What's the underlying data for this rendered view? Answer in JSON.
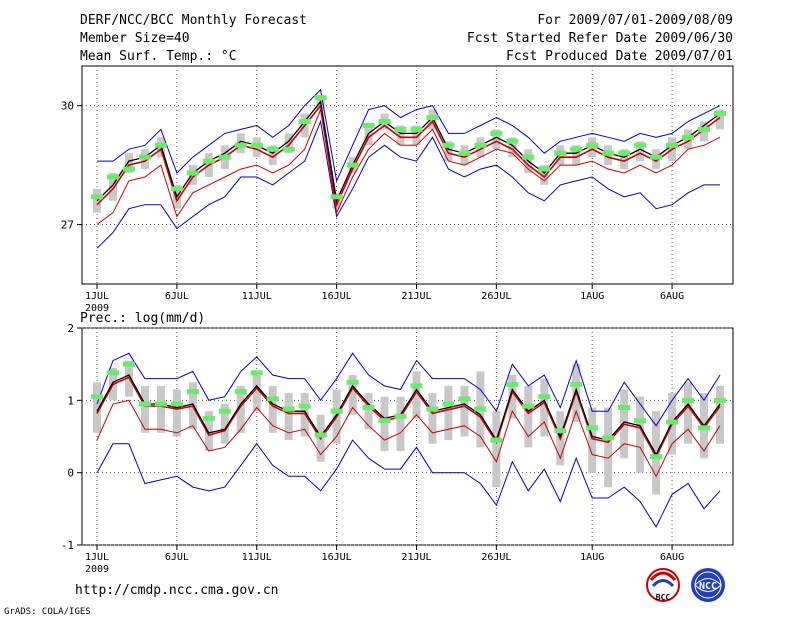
{
  "header": {
    "left_line1": "DERF/NCC/BCC Monthly Forecast",
    "left_line2": "Member Size=40",
    "left_line3": "Mean Surf. Temp.: °C",
    "right_line1": "For 2009/07/01-2009/08/09",
    "right_line2": "Fcst Started Refer Date 2009/06/30",
    "right_line3": "Fcst Produced Date 2009/07/01"
  },
  "footer": {
    "url": "http://cmdp.ncc.cma.gov.cn",
    "credit": "GrADS: COLA/IGES",
    "logo1_text": "BCC",
    "logo2_text": "NCC"
  },
  "colors": {
    "mean_line": "#000000",
    "median_line": "#cc0000",
    "bound_line": "#0000cc",
    "lower_line": "#cc0000",
    "box": "#c8c8c8",
    "marker": "#66ee66"
  },
  "chart_data": [
    {
      "type": "line",
      "title": "Mean Surf. Temp.: °C",
      "xlabel": "",
      "ylabel": "Mean Surf. Temp. (°C)",
      "year_label": "2009",
      "ylim": [
        25.5,
        31
      ],
      "yticks": [
        27,
        30
      ],
      "ytick_labels": [
        "27",
        "30"
      ],
      "x_tick_positions": [
        1,
        6,
        11,
        16,
        21,
        26,
        32,
        37
      ],
      "x_tick_labels": [
        "1JUL",
        "6JUL",
        "11JUL",
        "16JUL",
        "21JUL",
        "26JUL",
        "1AUG",
        "6AUG"
      ],
      "x": [
        1,
        2,
        3,
        4,
        5,
        6,
        7,
        8,
        9,
        10,
        11,
        12,
        13,
        14,
        15,
        16,
        17,
        18,
        19,
        20,
        21,
        22,
        23,
        24,
        25,
        26,
        27,
        28,
        29,
        30,
        31,
        32,
        33,
        34,
        35,
        36,
        37,
        38,
        39,
        40
      ],
      "series": [
        {
          "name": "ensemble mean",
          "values": [
            27.6,
            28.0,
            28.6,
            28.7,
            29.0,
            27.7,
            28.3,
            28.6,
            28.8,
            29.1,
            29.0,
            28.8,
            29.1,
            29.6,
            30.1,
            27.6,
            28.5,
            29.3,
            29.6,
            29.3,
            29.3,
            29.7,
            28.9,
            28.8,
            29.0,
            29.2,
            29.0,
            28.6,
            28.3,
            28.8,
            28.8,
            29.0,
            28.8,
            28.7,
            28.9,
            28.7,
            29.0,
            29.2,
            29.5,
            29.8
          ]
        },
        {
          "name": "median",
          "values": [
            27.5,
            27.9,
            28.5,
            28.6,
            28.9,
            27.6,
            28.2,
            28.5,
            28.7,
            29.0,
            28.9,
            28.7,
            29.0,
            29.5,
            30.0,
            27.5,
            28.4,
            29.2,
            29.5,
            29.2,
            29.2,
            29.6,
            28.8,
            28.7,
            28.9,
            29.1,
            28.9,
            28.5,
            28.2,
            28.7,
            28.7,
            28.9,
            28.7,
            28.6,
            28.8,
            28.6,
            28.9,
            29.1,
            29.4,
            29.7
          ]
        },
        {
          "name": "upper bound",
          "values": [
            28.6,
            28.6,
            28.9,
            29.0,
            29.4,
            28.3,
            28.7,
            29.0,
            29.3,
            29.4,
            29.5,
            29.2,
            29.5,
            30.0,
            30.4,
            28.1,
            29.0,
            29.9,
            30.0,
            29.7,
            29.9,
            30.0,
            29.3,
            29.3,
            29.5,
            29.7,
            29.5,
            29.2,
            28.8,
            29.1,
            29.2,
            29.3,
            29.2,
            29.1,
            29.3,
            29.2,
            29.3,
            29.6,
            29.8,
            30.0
          ]
        },
        {
          "name": "lower bound",
          "values": [
            26.4,
            26.8,
            27.4,
            27.5,
            27.5,
            26.9,
            27.2,
            27.5,
            27.7,
            28.2,
            28.2,
            28.0,
            28.3,
            28.6,
            29.6,
            27.2,
            27.9,
            28.7,
            29.0,
            28.7,
            28.6,
            29.2,
            28.4,
            28.2,
            28.4,
            28.5,
            28.2,
            27.8,
            27.6,
            28.0,
            28.1,
            28.2,
            27.9,
            27.7,
            27.8,
            27.4,
            27.5,
            27.8,
            28.0,
            28.0
          ]
        },
        {
          "name": "lower percentile",
          "values": [
            27.0,
            27.3,
            28.1,
            28.2,
            28.5,
            27.2,
            27.8,
            28.0,
            28.2,
            28.4,
            28.5,
            28.3,
            28.5,
            28.9,
            29.9,
            27.3,
            28.2,
            28.9,
            29.3,
            29.0,
            29.0,
            29.4,
            28.6,
            28.5,
            28.7,
            28.9,
            28.8,
            28.4,
            28.1,
            28.5,
            28.5,
            28.6,
            28.4,
            28.3,
            28.5,
            28.3,
            28.5,
            28.9,
            29.0,
            29.2
          ]
        },
        {
          "name": "observed marker",
          "values": [
            27.7,
            28.2,
            28.4,
            28.7,
            29.0,
            27.9,
            28.3,
            28.6,
            28.7,
            29.0,
            29.0,
            28.9,
            28.9,
            29.6,
            30.2,
            27.7,
            28.5,
            29.5,
            29.6,
            29.4,
            29.4,
            29.7,
            29.0,
            28.8,
            29.0,
            29.3,
            29.1,
            28.7,
            28.4,
            28.8,
            28.9,
            29.0,
            28.8,
            28.8,
            29.0,
            28.7,
            29.0,
            29.2,
            29.4,
            29.8
          ]
        }
      ],
      "boxes_low": [
        27.3,
        27.6,
        28.3,
        28.4,
        28.7,
        27.4,
        28.0,
        28.2,
        28.4,
        28.8,
        28.7,
        28.5,
        28.8,
        29.2,
        29.9,
        27.4,
        28.3,
        29.0,
        29.4,
        29.0,
        29.0,
        29.4,
        28.6,
        28.5,
        28.7,
        28.9,
        28.7,
        28.3,
        28.0,
        28.5,
        28.5,
        28.7,
        28.5,
        28.4,
        28.6,
        28.4,
        28.6,
        28.9,
        29.1,
        29.4
      ],
      "boxes_high": [
        27.9,
        28.3,
        28.8,
        28.9,
        29.2,
        28.0,
        28.5,
        28.8,
        29.0,
        29.3,
        29.2,
        29.0,
        29.3,
        29.8,
        30.2,
        27.8,
        28.7,
        29.5,
        29.8,
        29.5,
        29.5,
        29.9,
        29.1,
        29.0,
        29.2,
        29.4,
        29.2,
        28.9,
        28.5,
        29.0,
        29.0,
        29.2,
        29.0,
        28.9,
        29.1,
        28.9,
        29.2,
        29.4,
        29.6,
        29.9
      ]
    },
    {
      "type": "line",
      "title": "Prec.: log(mm/d)",
      "xlabel": "",
      "ylabel": "Prec. log(mm/d)",
      "year_label": "2009",
      "ylim": [
        -1,
        2
      ],
      "yticks": [
        -1,
        0,
        1,
        2
      ],
      "ytick_labels": [
        "-1",
        "0",
        "1",
        "2"
      ],
      "x_tick_positions": [
        1,
        6,
        11,
        16,
        21,
        26,
        32,
        37
      ],
      "x_tick_labels": [
        "1JUL",
        "6JUL",
        "11JUL",
        "16JUL",
        "21JUL",
        "26JUL",
        "1AUG",
        "6AUG"
      ],
      "x": [
        1,
        2,
        3,
        4,
        5,
        6,
        7,
        8,
        9,
        10,
        11,
        12,
        13,
        14,
        15,
        16,
        17,
        18,
        19,
        20,
        21,
        22,
        23,
        24,
        25,
        26,
        27,
        28,
        29,
        30,
        31,
        32,
        33,
        34,
        35,
        36,
        37,
        38,
        39,
        40
      ],
      "series": [
        {
          "name": "ensemble mean",
          "values": [
            0.85,
            1.25,
            1.35,
            0.95,
            0.95,
            0.9,
            0.95,
            0.55,
            0.6,
            0.95,
            1.2,
            0.95,
            0.85,
            0.85,
            0.5,
            0.8,
            1.2,
            0.95,
            0.75,
            0.8,
            1.15,
            0.85,
            0.9,
            0.95,
            0.8,
            0.45,
            1.15,
            0.85,
            1.0,
            0.5,
            1.15,
            0.5,
            0.45,
            0.7,
            0.65,
            0.25,
            0.7,
            0.95,
            0.65,
            0.95
          ]
        },
        {
          "name": "median",
          "values": [
            0.82,
            1.22,
            1.32,
            0.92,
            0.92,
            0.88,
            0.92,
            0.52,
            0.58,
            0.92,
            1.17,
            0.92,
            0.82,
            0.82,
            0.47,
            0.77,
            1.17,
            0.92,
            0.72,
            0.77,
            1.12,
            0.82,
            0.87,
            0.92,
            0.77,
            0.42,
            1.12,
            0.82,
            0.97,
            0.47,
            1.12,
            0.47,
            0.42,
            0.67,
            0.62,
            0.22,
            0.67,
            0.92,
            0.62,
            0.92
          ]
        },
        {
          "name": "upper bound",
          "values": [
            0.95,
            1.55,
            1.65,
            1.3,
            1.3,
            1.3,
            1.4,
            1.0,
            1.05,
            1.4,
            1.6,
            1.35,
            1.3,
            1.3,
            1.0,
            1.3,
            1.65,
            1.35,
            1.2,
            1.15,
            1.55,
            1.3,
            1.3,
            1.3,
            1.15,
            0.85,
            1.5,
            1.2,
            1.35,
            0.9,
            1.55,
            0.85,
            0.85,
            1.25,
            0.95,
            0.65,
            1.0,
            1.3,
            1.0,
            1.35
          ]
        },
        {
          "name": "lower bound",
          "values": [
            0.0,
            0.4,
            0.4,
            -0.15,
            -0.1,
            -0.05,
            -0.2,
            -0.25,
            -0.2,
            0.1,
            0.4,
            0.1,
            -0.05,
            -0.05,
            -0.25,
            0.05,
            0.45,
            0.2,
            0.05,
            0.05,
            0.35,
            0.0,
            0.0,
            0.0,
            -0.15,
            -0.45,
            0.15,
            -0.25,
            0.05,
            -0.4,
            0.2,
            -0.35,
            -0.35,
            -0.2,
            -0.4,
            -0.75,
            -0.3,
            -0.15,
            -0.5,
            -0.25
          ]
        },
        {
          "name": "lower percentile",
          "values": [
            0.45,
            0.95,
            1.0,
            0.6,
            0.6,
            0.55,
            0.65,
            0.3,
            0.35,
            0.6,
            0.9,
            0.65,
            0.55,
            0.6,
            0.25,
            0.5,
            0.9,
            0.65,
            0.45,
            0.55,
            0.8,
            0.55,
            0.6,
            0.65,
            0.5,
            0.15,
            0.85,
            0.5,
            0.7,
            0.2,
            0.85,
            0.25,
            0.2,
            0.4,
            0.35,
            -0.05,
            0.4,
            0.6,
            0.3,
            0.65
          ]
        },
        {
          "name": "observed marker",
          "values": [
            1.05,
            1.38,
            1.5,
            0.95,
            0.95,
            0.95,
            1.12,
            0.75,
            0.85,
            1.12,
            1.38,
            1.02,
            0.88,
            0.92,
            0.52,
            0.85,
            1.25,
            0.9,
            0.72,
            0.78,
            1.2,
            0.88,
            0.95,
            1.02,
            0.88,
            0.45,
            1.22,
            0.92,
            1.05,
            0.58,
            1.22,
            0.62,
            0.48,
            0.9,
            0.72,
            0.22,
            0.7,
            1.0,
            0.62,
            1.0
          ]
        }
      ],
      "boxes_low": [
        0.55,
        1.0,
        1.05,
        0.55,
        0.55,
        0.5,
        0.6,
        0.3,
        0.4,
        0.55,
        0.85,
        0.55,
        0.45,
        0.5,
        0.15,
        0.4,
        0.8,
        0.6,
        0.3,
        0.3,
        0.75,
        0.4,
        0.45,
        0.5,
        0.35,
        -0.2,
        0.75,
        0.35,
        0.5,
        0.1,
        0.7,
        0.0,
        -0.2,
        0.2,
        0.0,
        -0.3,
        0.25,
        0.4,
        0.2,
        0.4
      ],
      "boxes_high": [
        1.25,
        1.45,
        1.55,
        1.2,
        1.2,
        1.15,
        1.25,
        0.85,
        0.95,
        1.2,
        1.4,
        1.2,
        1.1,
        1.1,
        0.8,
        1.15,
        1.35,
        1.1,
        1.05,
        1.05,
        1.4,
        1.1,
        1.2,
        1.2,
        1.4,
        0.85,
        1.35,
        1.2,
        1.3,
        0.85,
        1.5,
        0.9,
        0.9,
        1.15,
        1.05,
        0.85,
        1.1,
        1.25,
        1.1,
        1.2
      ]
    }
  ]
}
